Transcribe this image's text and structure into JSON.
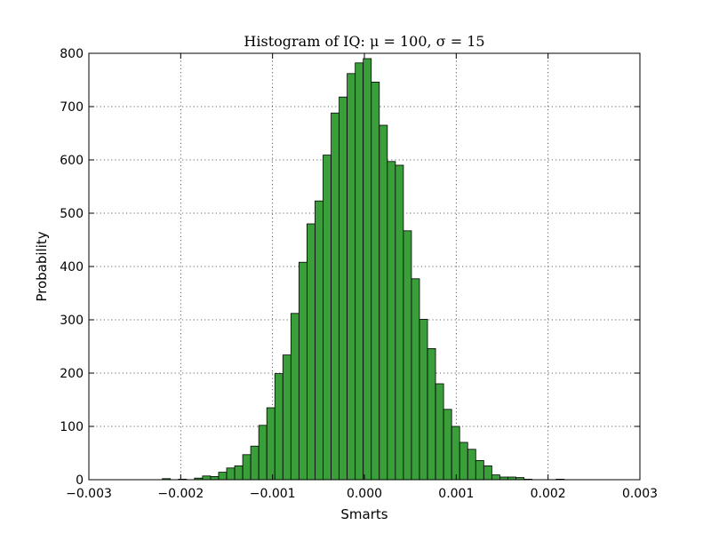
{
  "chart_data": {
    "type": "bar",
    "title": "Histogram of IQ:  μ = 100,  σ = 15",
    "xlabel": "Smarts",
    "ylabel": "Probability",
    "xlim": [
      -0.003,
      0.003
    ],
    "ylim": [
      0,
      800
    ],
    "x_ticks": [
      "−0.003",
      "−0.002",
      "−0.001",
      "0.000",
      "0.001",
      "0.002",
      "0.003"
    ],
    "y_ticks": [
      "0",
      "100",
      "200",
      "300",
      "400",
      "500",
      "600",
      "700",
      "800"
    ],
    "grid": true,
    "bar_color": "#3a9e3a",
    "bin_width": 8.75e-05,
    "bin_start": -0.0022,
    "values": [
      2,
      0,
      1,
      0,
      3,
      7,
      6,
      14,
      22,
      26,
      47,
      63,
      102,
      135,
      199,
      234,
      312,
      408,
      480,
      523,
      609,
      688,
      718,
      762,
      782,
      790,
      746,
      665,
      597,
      590,
      467,
      377,
      301,
      246,
      180,
      132,
      100,
      70,
      57,
      36,
      26,
      9,
      5,
      5,
      4,
      1,
      0,
      0,
      0,
      1
    ]
  }
}
